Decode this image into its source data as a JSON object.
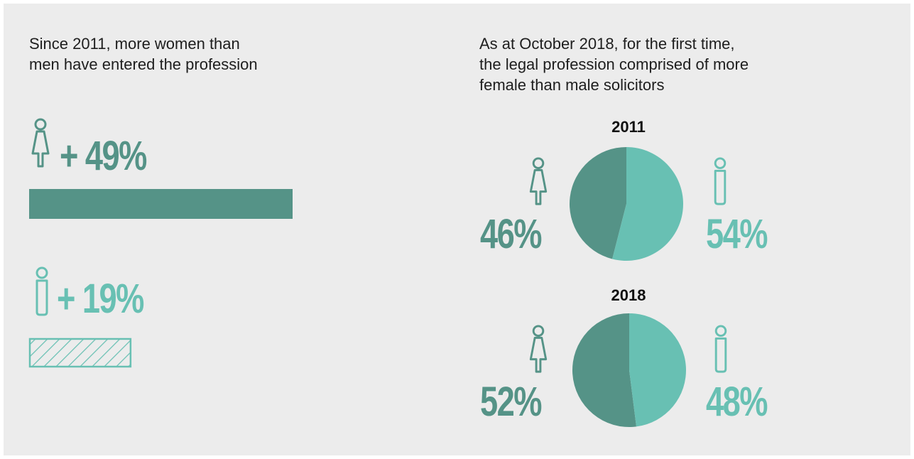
{
  "colors": {
    "women": "#559387",
    "men": "#68c0b3",
    "background": "#ececec"
  },
  "left": {
    "caption": "Since 2011, more women than\nmen have entered the profession",
    "women_growth_label": "+ 49%",
    "men_growth_label": "+ 19%"
  },
  "right": {
    "caption": "As at October 2018, for the first time,\nthe legal profession comprised of more\nfemale than male solicitors",
    "pies": [
      {
        "year": "2011",
        "women_label": "46%",
        "men_label": "54%"
      },
      {
        "year": "2018",
        "women_label": "52%",
        "men_label": "48%"
      }
    ]
  },
  "chart_data": [
    {
      "type": "bar",
      "categories": [
        "women",
        "men"
      ],
      "values": [
        49,
        19
      ],
      "unit": "%",
      "style": {
        "women": "solid",
        "men": "hatched"
      }
    },
    {
      "type": "pie",
      "title": "2011",
      "categories": [
        "women",
        "men"
      ],
      "values": [
        46,
        54
      ]
    },
    {
      "type": "pie",
      "title": "2018",
      "categories": [
        "women",
        "men"
      ],
      "values": [
        52,
        48
      ]
    }
  ]
}
